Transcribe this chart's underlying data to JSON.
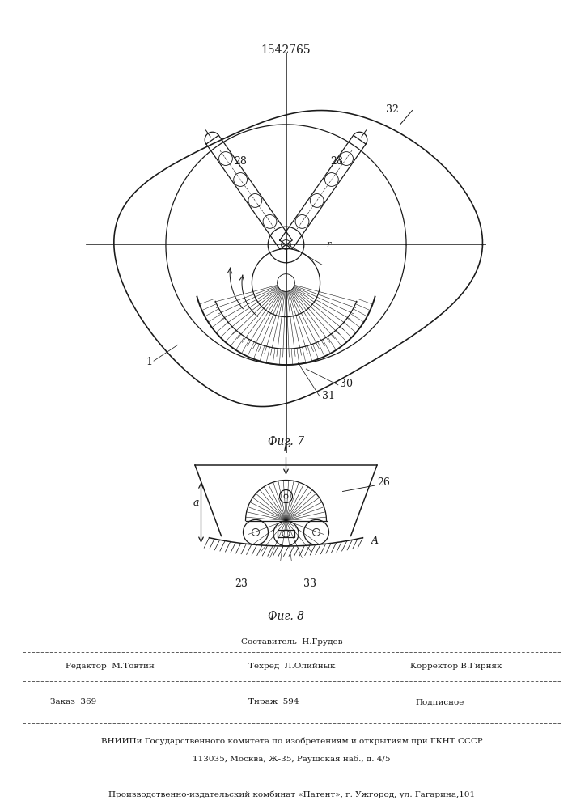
{
  "patent_number": "1542765",
  "fig7_caption": "Фиг. 7",
  "fig8_caption": "Фиг. 8",
  "bg_color": "#ffffff",
  "line_color": "#1a1a1a",
  "footer_line1": "Составитель  Н.Грудев",
  "footer_line2a": "Редактор  М.Товтин",
  "footer_line2b": "Техред  Л.Олийнык",
  "footer_line2c": "Корректор В.Гирняк",
  "footer_line3a": "Заказ  369",
  "footer_line3b": "Тираж  594",
  "footer_line3c": "Подписное",
  "footer_line4": "ВНИИПи Государственного комитета по изобретениям и открытиям при ГКНТ СССР",
  "footer_line5": "113035, Москва, Ж-35, Раушская наб., д. 4/5",
  "footer_line6": "Производственно-издательский комбинат «Патент», г. Ужгород, ул. Гагарина,101"
}
